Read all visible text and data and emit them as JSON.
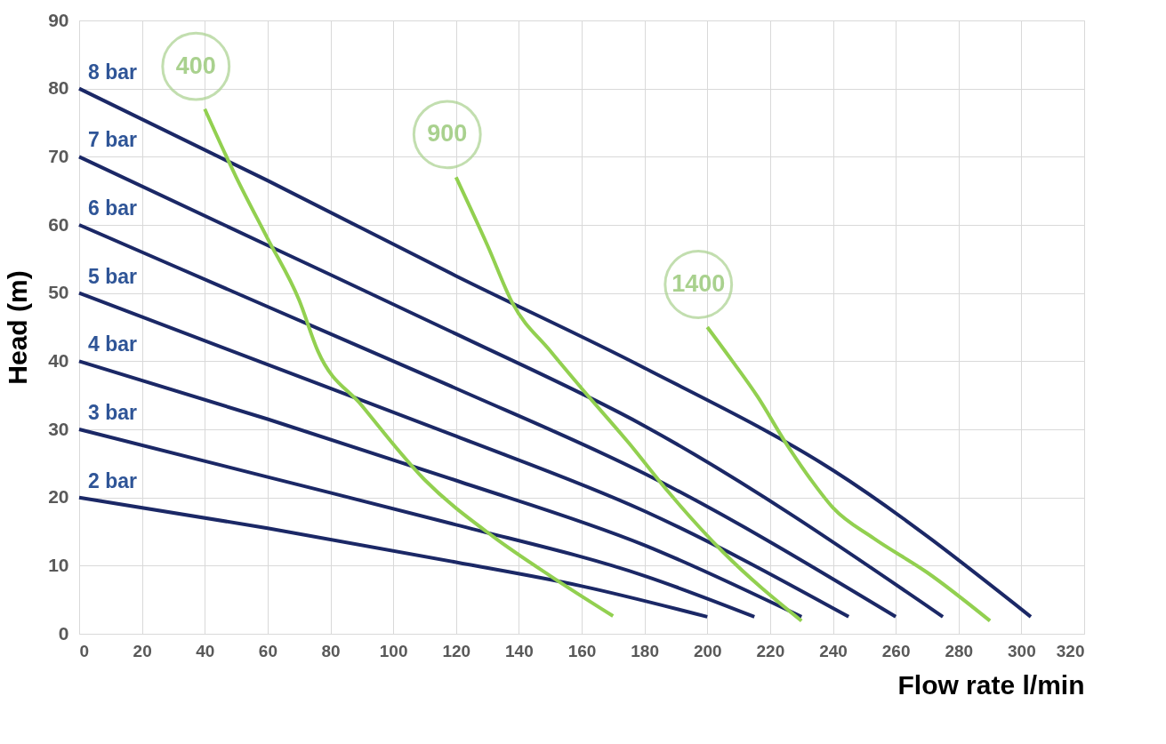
{
  "chart_data": {
    "type": "line",
    "xlabel": "Flow rate l/min",
    "ylabel": "Head (m)",
    "xlim": [
      0,
      320
    ],
    "xticks": [
      0,
      20,
      40,
      60,
      80,
      100,
      120,
      140,
      160,
      180,
      200,
      220,
      240,
      260,
      280,
      300,
      320
    ],
    "ylim": [
      0,
      90
    ],
    "yticks": [
      0,
      10,
      20,
      30,
      40,
      50,
      60,
      70,
      80,
      90
    ],
    "grid": true,
    "legend": false,
    "marker": "none",
    "line_style": "solid",
    "series": [
      {
        "name": "8 bar",
        "color": "#1b2866",
        "x": [
          0,
          60,
          120,
          180,
          240,
          303
        ],
        "values": [
          80,
          66.5,
          52.5,
          39,
          24,
          2.5
        ]
      },
      {
        "name": "7 bar",
        "color": "#1b2866",
        "x": [
          0,
          60,
          120,
          180,
          275
        ],
        "values": [
          70,
          57,
          44,
          30.5,
          2.5
        ]
      },
      {
        "name": "6 bar",
        "color": "#1b2866",
        "x": [
          0,
          60,
          120,
          180,
          260
        ],
        "values": [
          60,
          48,
          36,
          23.5,
          2.5
        ]
      },
      {
        "name": "5 bar",
        "color": "#1b2866",
        "x": [
          0,
          60,
          120,
          180,
          245
        ],
        "values": [
          50,
          39.5,
          29,
          18,
          2.5
        ]
      },
      {
        "name": "4 bar",
        "color": "#1b2866",
        "x": [
          0,
          60,
          120,
          180,
          230
        ],
        "values": [
          40,
          31.5,
          22.5,
          13,
          2.5
        ]
      },
      {
        "name": "3 bar",
        "color": "#1b2866",
        "x": [
          0,
          60,
          120,
          180,
          215
        ],
        "values": [
          30,
          23,
          16,
          8.5,
          2.5
        ]
      },
      {
        "name": "2 bar",
        "color": "#1b2866",
        "x": [
          0,
          60,
          120,
          160,
          200
        ],
        "values": [
          20,
          15.5,
          10.5,
          7,
          2.5
        ]
      },
      {
        "name": "400",
        "color": "#92d050",
        "x": [
          40,
          50,
          60,
          70,
          76,
          90,
          110,
          132,
          150,
          170
        ],
        "values": [
          77,
          67,
          58,
          49,
          41.5,
          33.5,
          22.6,
          14.2,
          8.5,
          2.6
        ]
      },
      {
        "name": "900",
        "color": "#92d050",
        "x": [
          120,
          130,
          138,
          150,
          160,
          175,
          188,
          205,
          230
        ],
        "values": [
          67,
          57,
          48.5,
          41.5,
          36,
          28,
          20.6,
          12,
          1.9
        ]
      },
      {
        "name": "1400",
        "color": "#92d050",
        "x": [
          200,
          208,
          216,
          225,
          233,
          240,
          253,
          270,
          290
        ],
        "values": [
          45,
          40,
          34.8,
          28,
          22.6,
          18.5,
          14,
          9,
          1.9
        ]
      }
    ]
  }
}
